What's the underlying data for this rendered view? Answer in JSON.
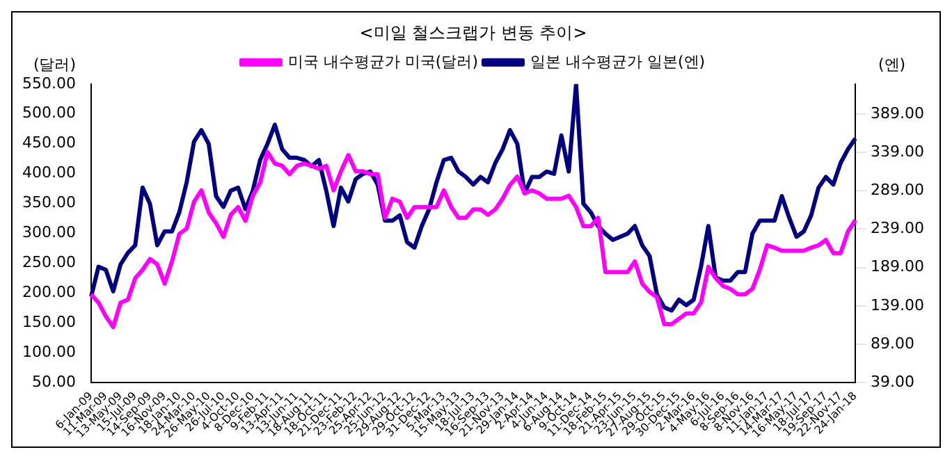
{
  "chart_data": {
    "type": "line",
    "title": "<미일 철스크랩가 변동 추이>",
    "ylabel": "(달러)",
    "y2label": "(엔)",
    "categories": [
      "6-Jan-09",
      null,
      "11-Mar-09",
      null,
      "13-May-09",
      null,
      "15-Jul-09",
      null,
      "14-Sep-09",
      null,
      "16-Nov-09",
      null,
      "18-Jan-10",
      null,
      "24-Mar-10",
      null,
      "26-May-10",
      null,
      "26-Jul-10",
      null,
      "4-Oct-10",
      null,
      "8-Dec-10",
      null,
      "9-Feb-11",
      null,
      "13-Apr-11",
      null,
      "13-Jun-11",
      null,
      "18-Aug-11",
      null,
      "18-Oct-11",
      null,
      "21-Dec-11",
      null,
      "23-Feb-12",
      null,
      "25-Apr-12",
      null,
      "25-Jun-12",
      null,
      "29-Aug-12",
      null,
      "29-Oct-12",
      null,
      "31-Dec-12",
      null,
      "5-Mar-13",
      null,
      "15-May-13",
      null,
      "18-Jul-13",
      null,
      "16-Sep-13",
      null,
      "21-Nov-13",
      null,
      "29-Jan-14",
      null,
      "2-Apr-14",
      null,
      "4-Jun-14",
      null,
      "6-Aug-14",
      null,
      "9-Oct-14",
      null,
      "11-Dec-14",
      null,
      "18-Feb-15",
      null,
      "21-Apr-15",
      null,
      "23-Jun-15",
      null,
      "27-Aug-15",
      null,
      "29-Oct-15",
      null,
      "30-Dec-15",
      null,
      "2-Mar-16",
      null,
      "4-May-16",
      null,
      "6-Jul-16",
      null,
      "8-Sep-16",
      null,
      "8-Nov-16",
      null,
      "11-Jan-17",
      null,
      "14-Mar-17",
      null,
      "16-May-17",
      null,
      "18-Jul-17",
      null,
      "19-Sep-17",
      null,
      "22-Nov-17",
      null,
      "24-Jan-18"
    ],
    "series": [
      {
        "name": "미국 내수평균가 미국(달러)",
        "color": "#ff00ff",
        "values": [
          198,
          184,
          161,
          143,
          184,
          189,
          225,
          239,
          257,
          248,
          216,
          253,
          299,
          308,
          353,
          372,
          335,
          317,
          294,
          331,
          344,
          321,
          363,
          385,
          436,
          417,
          413,
          399,
          413,
          417,
          413,
          408,
          413,
          372,
          404,
          431,
          404,
          404,
          399,
          399,
          326,
          358,
          353,
          326,
          344,
          344,
          344,
          344,
          372,
          344,
          326,
          326,
          340,
          340,
          331,
          340,
          358,
          381,
          395,
          367,
          372,
          367,
          358,
          358,
          358,
          363,
          344,
          312,
          312,
          326,
          235,
          235,
          235,
          235,
          253,
          216,
          202,
          193,
          148,
          148,
          157,
          166,
          166,
          184,
          244,
          225,
          212,
          207,
          198,
          198,
          207,
          239,
          280,
          276,
          271,
          271,
          271,
          271,
          276,
          280,
          289,
          267,
          267,
          303,
          322
        ]
      },
      {
        "name": "일본 내수평균가 일본(엔)",
        "color": "#000080",
        "axis": "y2",
        "values": [
          151,
          190,
          186,
          158,
          193,
          208,
          218,
          293,
          272,
          218,
          236,
          236,
          261,
          300,
          353,
          368,
          350,
          282,
          268,
          289,
          293,
          265,
          289,
          329,
          350,
          375,
          343,
          332,
          332,
          329,
          321,
          329,
          289,
          243,
          293,
          275,
          304,
          311,
          314,
          297,
          250,
          250,
          257,
          222,
          215,
          243,
          265,
          300,
          329,
          332,
          314,
          307,
          297,
          307,
          300,
          325,
          343,
          368,
          350,
          286,
          307,
          307,
          314,
          311,
          361,
          314,
          428,
          272,
          261,
          243,
          233,
          225,
          229,
          233,
          243,
          218,
          204,
          154,
          137,
          133,
          147,
          140,
          147,
          190,
          243,
          176,
          172,
          172,
          183,
          183,
          233,
          250,
          250,
          250,
          282,
          254,
          229,
          236,
          257,
          293,
          307,
          297,
          325,
          343,
          357
        ]
      }
    ],
    "ylim": [
      50,
      550
    ],
    "yticks": [
      {
        "value": 50,
        "label": "50.00"
      },
      {
        "value": 100,
        "label": "100.00"
      },
      {
        "value": 150,
        "label": "150.00"
      },
      {
        "value": 200,
        "label": "200.00"
      },
      {
        "value": 250,
        "label": "250.00"
      },
      {
        "value": 300,
        "label": "300.00"
      },
      {
        "value": 350,
        "label": "350.00"
      },
      {
        "value": 400,
        "label": "400.00"
      },
      {
        "value": 450,
        "label": "450.00"
      },
      {
        "value": 500,
        "label": "500.00"
      },
      {
        "value": 550,
        "label": "550.00"
      }
    ],
    "y2lim": [
      39,
      428
    ],
    "y2ticks": [
      {
        "value": 39,
        "label": "39.00"
      },
      {
        "value": 89,
        "label": "89.00"
      },
      {
        "value": 139,
        "label": "139.00"
      },
      {
        "value": 189,
        "label": "189.00"
      },
      {
        "value": 239,
        "label": "239.00"
      },
      {
        "value": 289,
        "label": "289.00"
      },
      {
        "value": 339,
        "label": "339.00"
      },
      {
        "value": 389,
        "label": "389.00"
      }
    ],
    "legend": "top",
    "marker": "none",
    "line_style": "solid"
  }
}
